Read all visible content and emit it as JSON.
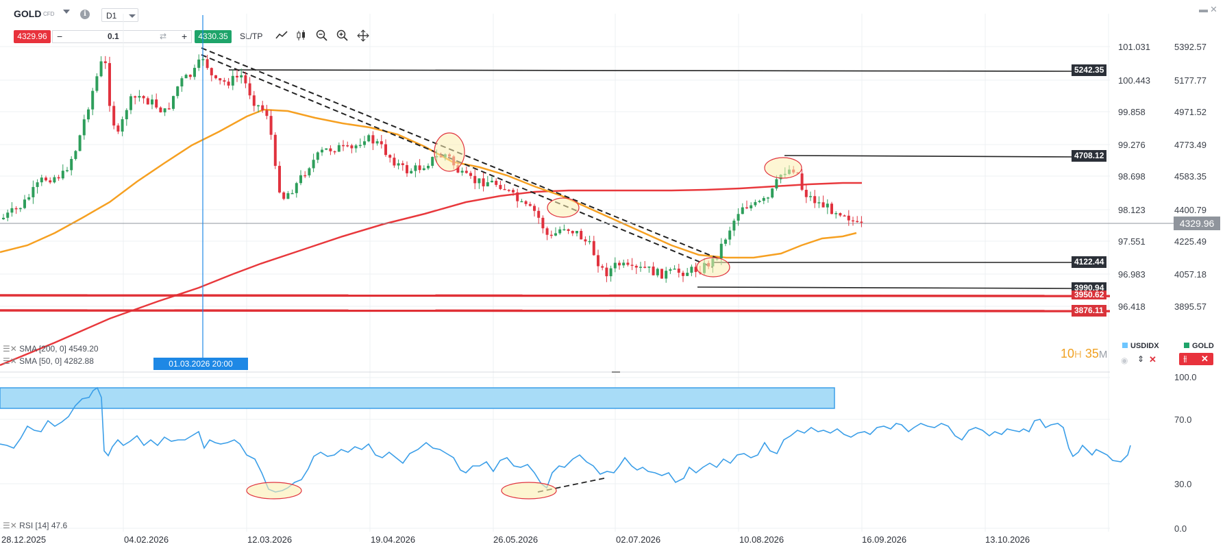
{
  "toolbar": {
    "symbol": "GOLD",
    "symbol_type": "CFD",
    "timeframe": "D1",
    "sell_price": "4329.96",
    "quantity": "0.1",
    "buy_price": "4330.35",
    "sltp_label": "SL/TP"
  },
  "price_axis": {
    "left_scale": [
      "101.031",
      "100.443",
      "99.858",
      "99.276",
      "98.698",
      "98.123",
      "97.551",
      "96.983",
      "96.418"
    ],
    "right_scale": [
      "5392.57",
      "5177.77",
      "4971.52",
      "4773.49",
      "4583.35",
      "4400.79",
      "4225.49",
      "4057.18",
      "3895.57"
    ],
    "current_price": "4329.96"
  },
  "level_tags": [
    {
      "label": "5242.35",
      "style": "dark"
    },
    {
      "label": "4708.12",
      "style": "dark"
    },
    {
      "label": "4122.44",
      "style": "dark"
    },
    {
      "label": "3990.94",
      "style": "dark"
    },
    {
      "label": "3950.62",
      "style": "red"
    },
    {
      "label": "3876.11",
      "style": "red"
    }
  ],
  "indicators": {
    "sma200": "SMA [200, 0] 4549.20",
    "sma50": "SMA [50, 0] 4282.88",
    "rsi": "RSI [14] 47.6"
  },
  "crosshair_date": "01.03.2026 20:00",
  "timer": {
    "hours": "10",
    "h_unit": "H",
    "minutes": "35",
    "m_unit": "M"
  },
  "legend_symbols": [
    "USDIDX",
    "GOLD"
  ],
  "rsi_axis": [
    "100.0",
    "70.0",
    "30.0",
    "0.0"
  ],
  "dates": [
    "28.12.2025",
    "04.02.2026",
    "12.03.2026",
    "19.04.2026",
    "26.05.2026",
    "02.07.2026",
    "10.08.2026",
    "16.09.2026",
    "13.10.2026"
  ],
  "colors": {
    "bull": "#2e9e5b",
    "bear": "#e0323e",
    "sma200": "#e8383c",
    "sma50": "#f6a021",
    "rsi": "#3a9ee8",
    "highlight": "#fbeeb0"
  },
  "icons": [
    "info-icon",
    "line-chart-icon",
    "candle-chart-icon",
    "zoom-out-icon",
    "zoom-in-icon",
    "move-icon",
    "eye-icon",
    "sort-icon",
    "close-icon"
  ]
}
